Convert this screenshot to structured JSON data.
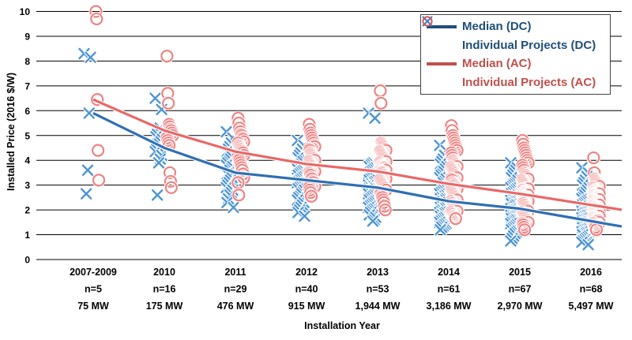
{
  "chart_data": {
    "type": "scatter",
    "title": "",
    "grid": true,
    "legend_position": "top-right",
    "x_axis": {
      "title": "Installation Year",
      "categories": [
        {
          "year": "2007-2009",
          "n": "n=5",
          "mw": "75 MW"
        },
        {
          "year": "2010",
          "n": "n=16",
          "mw": "175 MW"
        },
        {
          "year": "2011",
          "n": "n=29",
          "mw": "476 MW"
        },
        {
          "year": "2012",
          "n": "n=40",
          "mw": "915 MW"
        },
        {
          "year": "2013",
          "n": "n=53",
          "mw": "1,944 MW"
        },
        {
          "year": "2014",
          "n": "n=61",
          "mw": "3,186 MW"
        },
        {
          "year": "2015",
          "n": "n=67",
          "mw": "2,970 MW"
        },
        {
          "year": "2016",
          "n": "n=68",
          "mw": "5,497 MW"
        }
      ]
    },
    "y_axis": {
      "title": "Installed Price (2016 $/W)",
      "min": 0,
      "max": 10,
      "ticks": [
        0,
        1,
        2,
        3,
        4,
        5,
        6,
        7,
        8,
        9,
        10
      ]
    },
    "series": [
      {
        "name": "Median (DC)",
        "type": "line",
        "color": "#2f6fb3",
        "legend_color": "#1f4e79",
        "values": [
          5.9,
          4.5,
          3.5,
          3.2,
          2.9,
          2.35,
          2.05,
          1.55
        ]
      },
      {
        "name": "Individual Projects (DC)",
        "type": "scatter",
        "marker": "x",
        "color": "#4e95d3",
        "points": [
          [
            8.3,
            8.15,
            5.9,
            3.6,
            2.65
          ],
          [
            6.5,
            6.05,
            5.3,
            5.15,
            5.05,
            4.95,
            4.85,
            4.75,
            4.65,
            4.55,
            4.45,
            4.35,
            4.2,
            4.05,
            3.9,
            2.6
          ],
          [
            5.15,
            4.9,
            4.7,
            4.55,
            4.45,
            4.35,
            4.25,
            4.15,
            4.05,
            3.95,
            3.9,
            3.8,
            3.75,
            3.65,
            3.6,
            3.5,
            3.45,
            3.35,
            3.3,
            3.2,
            3.1,
            3.0,
            2.9,
            2.8,
            2.7,
            2.6,
            2.45,
            2.3,
            2.1
          ],
          [
            4.8,
            4.6,
            4.45,
            4.3,
            4.2,
            4.1,
            4.0,
            3.95,
            3.85,
            3.8,
            3.7,
            3.65,
            3.6,
            3.55,
            3.5,
            3.45,
            3.4,
            3.35,
            3.3,
            3.25,
            3.2,
            3.15,
            3.1,
            3.05,
            3.0,
            2.95,
            2.9,
            2.85,
            2.8,
            2.7,
            2.65,
            2.55,
            2.5,
            2.4,
            2.3,
            2.2,
            2.1,
            2.0,
            1.9,
            1.75
          ],
          [
            5.9,
            5.7,
            3.9,
            3.85,
            3.8,
            3.75,
            3.7,
            3.65,
            3.6,
            3.55,
            3.5,
            3.45,
            3.4,
            3.35,
            3.3,
            3.25,
            3.2,
            3.15,
            3.1,
            3.05,
            3.05,
            3.0,
            3.0,
            2.95,
            2.95,
            2.9,
            2.9,
            2.85,
            2.85,
            2.8,
            2.8,
            2.75,
            2.7,
            2.65,
            2.6,
            2.55,
            2.5,
            2.45,
            2.4,
            2.35,
            2.3,
            2.25,
            2.2,
            2.15,
            2.1,
            2.05,
            2.0,
            1.95,
            1.9,
            1.8,
            1.7,
            1.6,
            1.55
          ],
          [
            4.6,
            4.4,
            4.2,
            4.05,
            3.95,
            3.85,
            3.75,
            3.65,
            3.55,
            3.45,
            3.4,
            3.3,
            3.25,
            3.15,
            3.1,
            3.0,
            2.95,
            2.9,
            2.85,
            2.8,
            2.75,
            2.7,
            2.65,
            2.6,
            2.55,
            2.5,
            2.5,
            2.45,
            2.45,
            2.4,
            2.35,
            2.35,
            2.3,
            2.3,
            2.25,
            2.2,
            2.2,
            2.15,
            2.1,
            2.1,
            2.05,
            2.0,
            2.0,
            1.95,
            1.9,
            1.9,
            1.85,
            1.8,
            1.8,
            1.75,
            1.7,
            1.7,
            1.65,
            1.6,
            1.55,
            1.5,
            1.45,
            1.4,
            1.35,
            1.3,
            1.2
          ],
          [
            3.9,
            3.7,
            3.6,
            3.5,
            3.4,
            3.3,
            3.2,
            3.1,
            3.05,
            3.0,
            2.95,
            2.9,
            2.85,
            2.8,
            2.75,
            2.7,
            2.65,
            2.6,
            2.55,
            2.5,
            2.45,
            2.4,
            2.38,
            2.35,
            2.32,
            2.3,
            2.28,
            2.25,
            2.22,
            2.2,
            2.15,
            2.1,
            2.08,
            2.05,
            2.02,
            2.0,
            1.98,
            1.95,
            1.92,
            1.9,
            1.88,
            1.85,
            1.82,
            1.8,
            1.78,
            1.75,
            1.72,
            1.7,
            1.68,
            1.65,
            1.62,
            1.6,
            1.55,
            1.52,
            1.5,
            1.45,
            1.4,
            1.35,
            1.3,
            1.25,
            1.2,
            1.15,
            1.1,
            1.05,
            0.95,
            0.85,
            0.75
          ],
          [
            3.7,
            3.5,
            3.35,
            3.2,
            3.1,
            3.0,
            2.9,
            2.8,
            2.7,
            2.6,
            2.5,
            2.45,
            2.4,
            2.35,
            2.3,
            2.25,
            2.2,
            2.15,
            2.1,
            2.05,
            2.0,
            1.98,
            1.95,
            1.92,
            1.9,
            1.88,
            1.85,
            1.82,
            1.8,
            1.78,
            1.75,
            1.72,
            1.7,
            1.68,
            1.65,
            1.62,
            1.6,
            1.58,
            1.55,
            1.52,
            1.5,
            1.48,
            1.45,
            1.42,
            1.4,
            1.38,
            1.35,
            1.32,
            1.3,
            1.28,
            1.25,
            1.22,
            1.2,
            1.18,
            1.15,
            1.12,
            1.1,
            1.08,
            1.05,
            1.02,
            1.0,
            0.95,
            0.9,
            0.85,
            0.8,
            0.75,
            0.7,
            0.6
          ]
        ]
      },
      {
        "name": "Median (AC)",
        "type": "line",
        "color": "#e86868",
        "legend_color": "#c0504d",
        "values": [
          6.45,
          5.2,
          4.35,
          3.85,
          3.55,
          3.05,
          2.65,
          2.2
        ]
      },
      {
        "name": "Individual Projects (AC)",
        "type": "scatter",
        "marker": "circle",
        "color": "#ee8383",
        "points": [
          [
            10.0,
            9.7,
            6.45,
            4.4,
            3.2
          ],
          [
            8.2,
            6.7,
            6.3,
            5.45,
            5.35,
            5.25,
            5.2,
            5.1,
            5.0,
            4.9,
            4.8,
            4.7,
            4.6,
            3.5,
            3.15,
            2.9
          ],
          [
            5.7,
            5.5,
            5.3,
            5.15,
            5.05,
            5.0,
            4.9,
            4.85,
            4.75,
            4.7,
            4.6,
            4.55,
            4.5,
            4.45,
            4.4,
            4.35,
            4.3,
            4.2,
            4.15,
            4.05,
            4.0,
            3.9,
            3.8,
            3.7,
            3.6,
            3.45,
            3.3,
            3.1,
            2.6
          ],
          [
            5.45,
            5.25,
            5.1,
            5.0,
            4.9,
            4.8,
            4.7,
            4.6,
            4.55,
            4.45,
            4.4,
            4.3,
            4.25,
            4.2,
            4.15,
            4.1,
            4.05,
            4.0,
            3.95,
            3.9,
            3.85,
            3.8,
            3.75,
            3.7,
            3.65,
            3.6,
            3.55,
            3.5,
            3.45,
            3.4,
            3.3,
            3.25,
            3.15,
            3.1,
            3.0,
            2.95,
            2.9,
            2.8,
            2.7,
            2.55
          ],
          [
            6.8,
            6.3,
            4.7,
            4.65,
            4.6,
            4.55,
            4.5,
            4.45,
            4.4,
            4.35,
            4.3,
            4.25,
            4.2,
            4.15,
            4.1,
            4.05,
            4.0,
            3.95,
            3.9,
            3.85,
            3.8,
            3.78,
            3.75,
            3.72,
            3.7,
            3.65,
            3.6,
            3.58,
            3.55,
            3.52,
            3.5,
            3.45,
            3.4,
            3.35,
            3.3,
            3.25,
            3.2,
            3.15,
            3.1,
            3.05,
            3.0,
            2.95,
            2.9,
            2.85,
            2.8,
            2.7,
            2.65,
            2.55,
            2.5,
            2.4,
            2.3,
            2.15,
            2.0
          ],
          [
            5.4,
            5.2,
            5.0,
            4.9,
            4.8,
            4.7,
            4.6,
            4.5,
            4.4,
            4.3,
            4.2,
            4.1,
            4.0,
            3.95,
            3.9,
            3.85,
            3.8,
            3.75,
            3.7,
            3.65,
            3.6,
            3.55,
            3.5,
            3.45,
            3.4,
            3.35,
            3.3,
            3.25,
            3.2,
            3.1,
            3.05,
            3.0,
            3.0,
            2.95,
            2.9,
            2.85,
            2.8,
            2.75,
            2.7,
            2.65,
            2.6,
            2.55,
            2.5,
            2.45,
            2.4,
            2.35,
            2.3,
            2.25,
            2.2,
            2.15,
            2.1,
            2.05,
            2.0,
            1.95,
            1.9,
            1.85,
            1.8,
            1.75,
            1.72,
            1.68,
            1.65
          ],
          [
            4.8,
            4.65,
            4.5,
            4.4,
            4.3,
            4.2,
            4.1,
            4.0,
            3.9,
            3.8,
            3.7,
            3.6,
            3.5,
            3.45,
            3.4,
            3.35,
            3.3,
            3.25,
            3.2,
            3.15,
            3.1,
            3.05,
            3.0,
            2.95,
            2.9,
            2.88,
            2.85,
            2.82,
            2.8,
            2.75,
            2.72,
            2.7,
            2.68,
            2.65,
            2.62,
            2.6,
            2.58,
            2.55,
            2.52,
            2.5,
            2.48,
            2.45,
            2.42,
            2.4,
            2.35,
            2.3,
            2.28,
            2.25,
            2.2,
            2.15,
            2.1,
            2.05,
            2.0,
            1.95,
            1.9,
            1.85,
            1.8,
            1.75,
            1.7,
            1.65,
            1.6,
            1.55,
            1.5,
            1.45,
            1.4,
            1.3,
            1.2
          ],
          [
            4.1,
            3.5,
            3.25,
            3.2,
            3.15,
            3.1,
            3.05,
            3.0,
            2.95,
            2.9,
            2.85,
            2.8,
            2.78,
            2.75,
            2.72,
            2.7,
            2.68,
            2.65,
            2.62,
            2.6,
            2.58,
            2.55,
            2.52,
            2.5,
            2.48,
            2.45,
            2.42,
            2.4,
            2.38,
            2.35,
            2.32,
            2.3,
            2.28,
            2.25,
            2.22,
            2.2,
            2.18,
            2.15,
            2.12,
            2.1,
            2.08,
            2.05,
            2.02,
            2.0,
            1.98,
            1.95,
            1.92,
            1.9,
            1.88,
            1.85,
            1.82,
            1.8,
            1.78,
            1.75,
            1.72,
            1.7,
            1.68,
            1.65,
            1.62,
            1.6,
            1.58,
            1.55,
            1.5,
            1.45,
            1.4,
            1.35,
            1.3,
            1.2
          ]
        ]
      }
    ]
  },
  "legend": {
    "items": [
      {
        "label": "Median (DC)",
        "kind": "line",
        "color": "#1f4e79",
        "group": "dc"
      },
      {
        "label": "Individual Projects (DC)",
        "kind": "x",
        "color": "#4e95d3",
        "group": "dc"
      },
      {
        "label": "Median (AC)",
        "kind": "line",
        "color": "#c0504d",
        "group": "ac"
      },
      {
        "label": "Individual Projects (AC)",
        "kind": "circle",
        "color": "#ee8383",
        "group": "ac"
      }
    ]
  },
  "axes": {
    "y_title": "Installed Price (2016 $/W)",
    "x_title": "Installation Year"
  }
}
